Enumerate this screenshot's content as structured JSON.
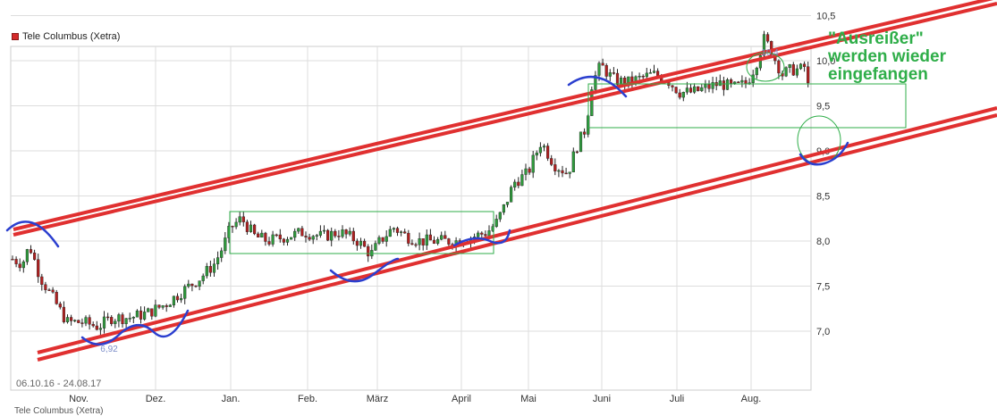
{
  "chart_data": {
    "type": "candlestick",
    "legend": [
      {
        "name": "Tele Columbus (Xetra)",
        "color": "#d42a2a"
      }
    ],
    "date_range_label": "06.10.16 - 24.08.17",
    "x_tick_labels": [
      "Nov.",
      "Dez.",
      "Jan.",
      "Feb.",
      "März",
      "April",
      "Mai",
      "Juni",
      "Juli",
      "Aug."
    ],
    "y_tick_labels": [
      "7,0",
      "7,5",
      "8,0",
      "8,5",
      "9,0",
      "9,5",
      "10,0",
      "10,5"
    ],
    "y_ticks": [
      7.0,
      7.5,
      8.0,
      8.5,
      9.0,
      9.5,
      10.0,
      10.5
    ],
    "ylim": [
      6.6,
      10.9
    ],
    "grid": true,
    "low_annotation": "6,92",
    "high_annotation": "10,4",
    "callout_text": "\"Ausreißer\"\nwerden wieder\neingefangen",
    "monthly_points": [
      {
        "label": "Nov.",
        "close": 7.3
      },
      {
        "label": "Dez.",
        "close": 7.15
      },
      {
        "label": "Jan.",
        "close": 8.05
      },
      {
        "label": "Feb.",
        "close": 8.1
      },
      {
        "label": "März",
        "close": 8.05
      },
      {
        "label": "April",
        "close": 8.25
      },
      {
        "label": "Mai",
        "close": 8.8
      },
      {
        "label": "Juni",
        "close": 9.8
      },
      {
        "label": "Juli",
        "close": 9.75
      },
      {
        "label": "Aug.",
        "close": 9.9
      }
    ]
  },
  "legend_label": "Tele Columbus (Xetra)",
  "range_label": "06.10.16 - 24.08.17",
  "footer_label": "Tele Columbus (Xetra)",
  "colors": {
    "candle_up": "#2e9a3c",
    "candle_down": "#b02020",
    "channel": "#e03030",
    "box": "#2fae49",
    "drawing": "#2b3fcf",
    "grid": "#dddddd"
  }
}
